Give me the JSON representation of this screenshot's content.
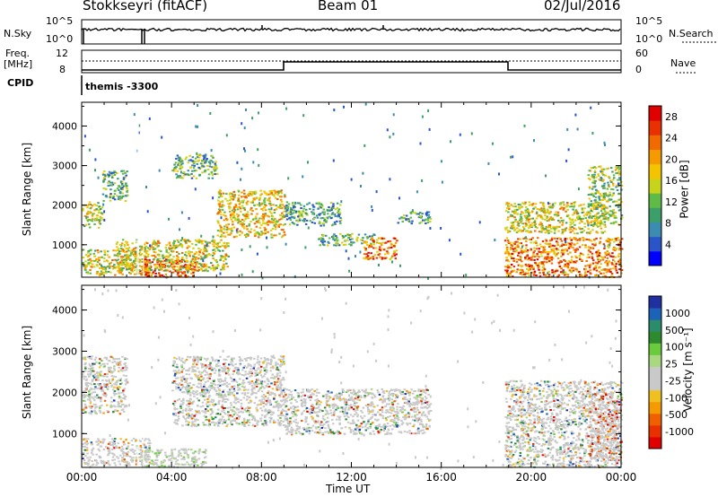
{
  "header": {
    "station": "Stokkseyri (fitACF)",
    "beam": "Beam 01",
    "date": "02/Jul/2016"
  },
  "info_panel": {
    "nsky_label": "N.Sky",
    "nsky_top": "10^5",
    "nsky_bottom": "10^0",
    "nsearch_label": "N.Search",
    "nsearch_top": "10^5",
    "nsearch_bottom": "10^0",
    "freq_label": "Freq.",
    "freq_unit": "[MHz]",
    "freq_tick_top": "12",
    "freq_tick_bottom": "8",
    "nave_label": "Nave",
    "nave_top": "60",
    "nave_bottom": "0",
    "cpid_label": "CPID",
    "cpid_value": "themis -3300"
  },
  "x_axis": {
    "label": "Time UT",
    "ticks": [
      "00:00",
      "04:00",
      "08:00",
      "12:00",
      "16:00",
      "20:00",
      "00:00"
    ]
  },
  "chart_data": [
    {
      "type": "heatmap",
      "panel": "power",
      "ylabel": "Slant Range [km]",
      "yticks": [
        1000,
        2000,
        3000,
        4000
      ],
      "ylim": [
        180,
        4600
      ],
      "xlim_hours": [
        0,
        24
      ],
      "colorbar_label": "Power [dB]",
      "colorbar_ticks": [
        "4",
        "8",
        "12",
        "16",
        "20",
        "24",
        "28"
      ],
      "colorbar_colors": [
        "#0000ff",
        "#2a55c8",
        "#3b8cb0",
        "#3c9e68",
        "#5fbb46",
        "#c8d41c",
        "#f5c400",
        "#f59a00",
        "#f06a00",
        "#e83000",
        "#e00000"
      ],
      "regions": [
        {
          "t": [
            0.0,
            0.9
          ],
          "r": [
            1450,
            2100
          ],
          "level": 0.5
        },
        {
          "t": [
            0.9,
            2.0
          ],
          "r": [
            2100,
            2900
          ],
          "level": 0.35
        },
        {
          "t": [
            0.0,
            3.0
          ],
          "r": [
            250,
            900
          ],
          "level": 0.55
        },
        {
          "t": [
            2.5,
            5.0
          ],
          "r": [
            200,
            650
          ],
          "level": 0.9
        },
        {
          "t": [
            1.5,
            6.5
          ],
          "r": [
            350,
            1150
          ],
          "level": 0.55
        },
        {
          "t": [
            4.0,
            6.0
          ],
          "r": [
            2700,
            3300
          ],
          "level": 0.35
        },
        {
          "t": [
            6.0,
            9.0
          ],
          "r": [
            1200,
            2400
          ],
          "level": 0.6
        },
        {
          "t": [
            9.0,
            11.5
          ],
          "r": [
            1500,
            2100
          ],
          "level": 0.3
        },
        {
          "t": [
            10.5,
            13.0
          ],
          "r": [
            1000,
            1300
          ],
          "level": 0.35
        },
        {
          "t": [
            12.5,
            14.0
          ],
          "r": [
            650,
            1200
          ],
          "level": 0.75
        },
        {
          "t": [
            14.0,
            15.5
          ],
          "r": [
            1550,
            1850
          ],
          "level": 0.3
        },
        {
          "t": [
            18.8,
            23.3
          ],
          "r": [
            1300,
            2100
          ],
          "level": 0.55
        },
        {
          "t": [
            18.8,
            24.0
          ],
          "r": [
            200,
            1200
          ],
          "level": 0.75
        },
        {
          "t": [
            22.5,
            24.0
          ],
          "r": [
            1500,
            3000
          ],
          "level": 0.45
        }
      ]
    },
    {
      "type": "heatmap",
      "panel": "velocity",
      "ylabel": "Slant Range [km]",
      "yticks": [
        1000,
        2000,
        3000,
        4000
      ],
      "ylim": [
        180,
        4600
      ],
      "xlim_hours": [
        0,
        24
      ],
      "colorbar_label": "Velocity [m s⁻¹]",
      "colorbar_ticks": [
        "1000",
        "500",
        "100",
        "25",
        "-25",
        "-100",
        "-500",
        "-1000"
      ],
      "colorbar_colors": [
        "#2030a0",
        "#1c62b8",
        "#2a8c6a",
        "#2e8a2e",
        "#6acb3c",
        "#a8d880",
        "#c9c9c9",
        "#c9c9c9",
        "#f0c020",
        "#f59a00",
        "#f06000",
        "#e83000",
        "#e00000"
      ],
      "regions": [
        {
          "t": [
            0.0,
            2.0
          ],
          "r": [
            1500,
            2900
          ],
          "level": 0.5
        },
        {
          "t": [
            0.0,
            3.0
          ],
          "r": [
            250,
            900
          ],
          "level": 0.5
        },
        {
          "t": [
            2.5,
            5.5
          ],
          "r": [
            200,
            650
          ],
          "level": 0.85
        },
        {
          "t": [
            4.0,
            9.0
          ],
          "r": [
            1200,
            2900
          ],
          "level": 0.5
        },
        {
          "t": [
            9.0,
            15.5
          ],
          "r": [
            1000,
            2100
          ],
          "level": 0.5
        },
        {
          "t": [
            18.8,
            24.0
          ],
          "r": [
            200,
            2300
          ],
          "level": 0.45
        },
        {
          "t": [
            22.5,
            24.0
          ],
          "r": [
            300,
            2000
          ],
          "level": 0.15
        }
      ]
    }
  ]
}
